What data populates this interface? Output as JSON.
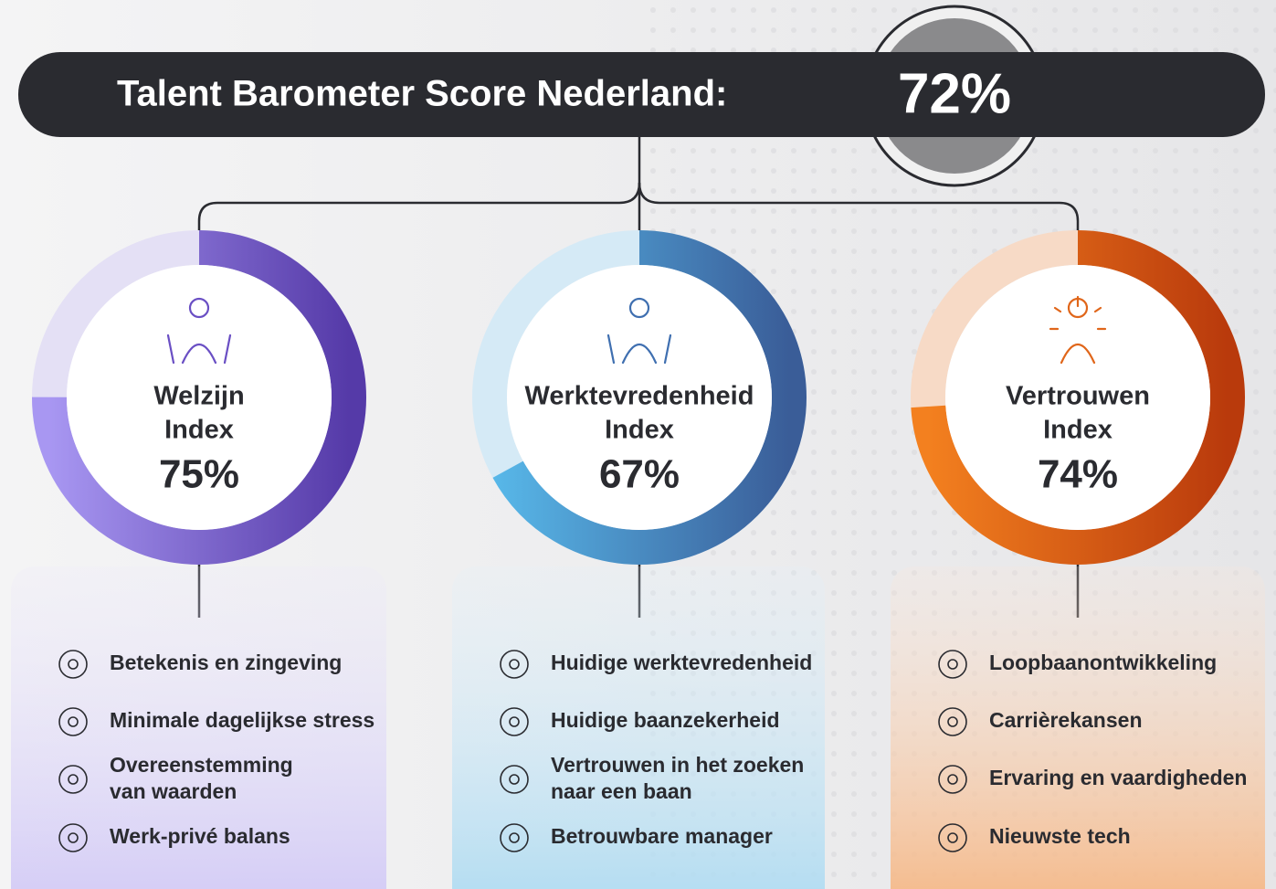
{
  "header": {
    "title": "Talent Barometer Score Nederland:",
    "score": "72%"
  },
  "indices": [
    {
      "name": "Welzijn",
      "subtitle": "Index",
      "value": 75,
      "value_label": "75%",
      "items": [
        "Betekenis en zingeving",
        "Minimale dagelijkse stress",
        [
          "Overeenstemming",
          "van waarden"
        ],
        "Werk-privé balans"
      ]
    },
    {
      "name": "Werktevredenheid",
      "subtitle": "Index",
      "value": 67,
      "value_label": "67%",
      "items": [
        "Huidige werktevredenheid",
        "Huidige baanzekerheid",
        [
          "Vertrouwen in het zoeken",
          "naar een baan"
        ],
        "Betrouwbare manager"
      ]
    },
    {
      "name": "Vertrouwen",
      "subtitle": "Index",
      "value": 74,
      "value_label": "74%",
      "items": [
        "Loopbaanontwikkeling",
        "Carrièrekansen",
        "Ervaring en vaardigheden",
        "Nieuwste tech"
      ]
    }
  ]
}
